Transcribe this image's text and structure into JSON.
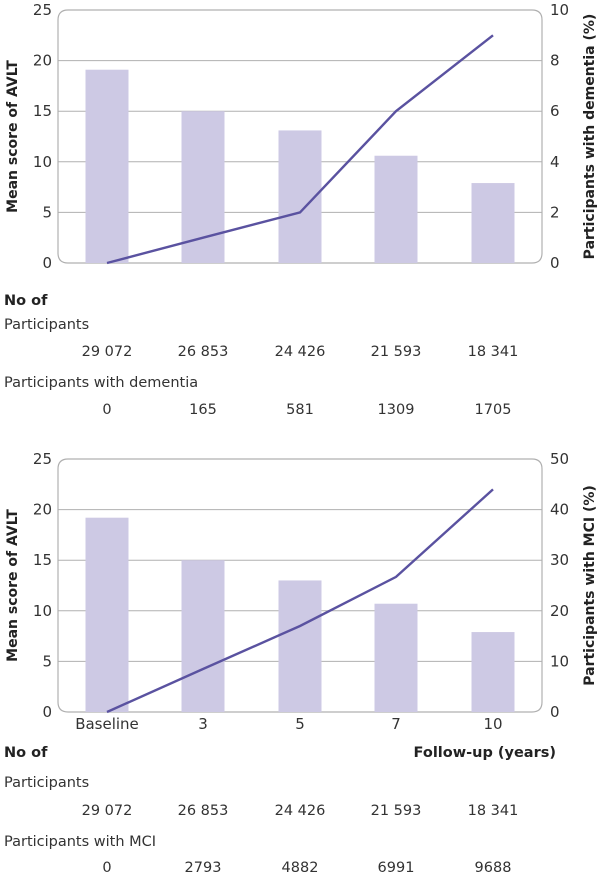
{
  "chart_data": [
    {
      "type": "bar+line",
      "categories": [
        "Baseline",
        "3",
        "5",
        "7",
        "10"
      ],
      "show_category_labels": false,
      "ylabel": "Mean score of AVLT",
      "y2label": "Participants with dementia (%)",
      "ylim": [
        0,
        25
      ],
      "yticks": [
        "0",
        "5",
        "10",
        "15",
        "20",
        "25"
      ],
      "y2lim": [
        0,
        10
      ],
      "y2ticks": [
        "0",
        "2",
        "4",
        "6",
        "8",
        "10"
      ],
      "grid": true,
      "bars": [
        19.1,
        15.0,
        13.1,
        10.6,
        7.9
      ],
      "line": [
        0,
        1.0,
        2.0,
        6.0,
        9.0
      ],
      "table": {
        "heading": "No of",
        "rows": [
          {
            "label": "Participants",
            "values": [
              "29 072",
              "26 853",
              "24 426",
              "21 593",
              "18 341"
            ]
          },
          {
            "label": "Participants with dementia",
            "values": [
              "0",
              "165",
              "581",
              "1309",
              "1705"
            ]
          }
        ]
      }
    },
    {
      "type": "bar+line",
      "categories": [
        "Baseline",
        "3",
        "5",
        "7",
        "10"
      ],
      "show_category_labels": true,
      "xlabel": "Follow-up (years)",
      "ylabel": "Mean score of AVLT",
      "y2label": "Participants with MCI (%)",
      "ylim": [
        0,
        25
      ],
      "yticks": [
        "0",
        "5",
        "10",
        "15",
        "20",
        "25"
      ],
      "y2lim": [
        0,
        50
      ],
      "y2ticks": [
        "0",
        "10",
        "20",
        "30",
        "40",
        "50"
      ],
      "grid": true,
      "bars": [
        19.2,
        15.0,
        13.0,
        10.7,
        7.9
      ],
      "line": [
        0,
        8.5,
        17.0,
        26.7,
        44.0
      ],
      "table": {
        "heading": "No of",
        "rows": [
          {
            "label": "Participants",
            "values": [
              "29 072",
              "26 853",
              "24 426",
              "21 593",
              "18 341"
            ]
          },
          {
            "label": "Participants with MCI",
            "values": [
              "0",
              "2793",
              "4882",
              "6991",
              "9688"
            ]
          }
        ]
      }
    }
  ],
  "colors": {
    "bar": "#cdc9e4",
    "line": "#5a52a0",
    "grid": "#b0b0b0",
    "text": "#333333"
  }
}
